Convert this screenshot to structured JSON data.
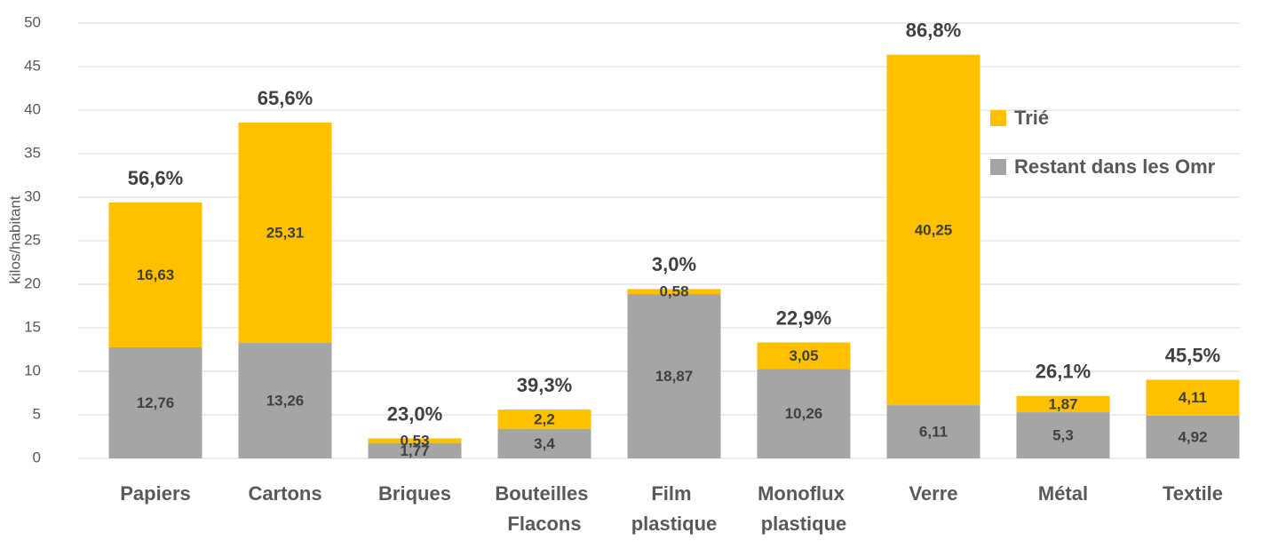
{
  "chart_data": {
    "type": "stacked_bar",
    "y_label": "kilos/habitant",
    "categories": [
      "Papiers",
      "Cartons",
      "Briques",
      "Bouteilles Flacons",
      "Film plastique",
      "Monoflux plastique",
      "Verre",
      "Métal",
      "Textile"
    ],
    "series": [
      {
        "name": "Restant dans les Omr",
        "color": "#a5a5a5",
        "values": [
          12.76,
          13.26,
          1.77,
          3.4,
          18.87,
          10.26,
          6.11,
          5.3,
          4.92
        ],
        "value_labels": [
          "12,76",
          "13,26",
          "1,77",
          "3,4",
          "18,87",
          "10,26",
          "6,11",
          "5,3",
          "4,92"
        ]
      },
      {
        "name": "Trié",
        "color": "#ffc000",
        "values": [
          16.63,
          25.31,
          0.53,
          2.2,
          0.58,
          3.05,
          40.25,
          1.87,
          4.11
        ],
        "value_labels": [
          "16,63",
          "25,31",
          "0,53",
          "2,2",
          "0,58",
          "3,05",
          "40,25",
          "1,87",
          "4,11"
        ]
      }
    ],
    "annotations": [
      "56,6%",
      "65,6%",
      "23,0%",
      "39,3%",
      "3,0%",
      "22,9%",
      "86,8%",
      "26,1%",
      "45,5%"
    ],
    "ylim": [
      0,
      50
    ],
    "yticks": [
      0,
      5,
      10,
      15,
      20,
      25,
      30,
      35,
      40,
      45,
      50
    ],
    "grid": true,
    "legend": "right"
  }
}
